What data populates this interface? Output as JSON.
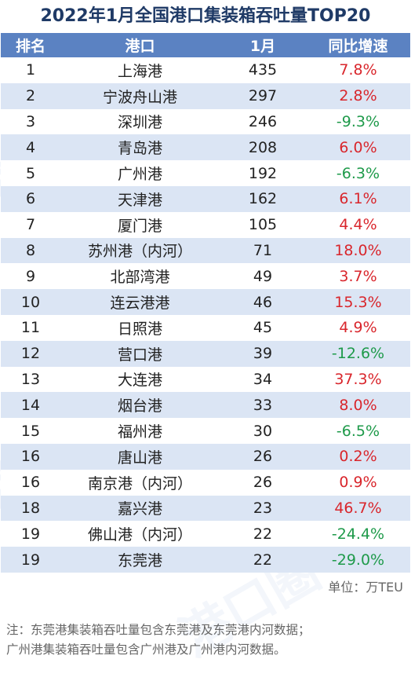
{
  "title": "2022年1月全国港口集装箱吞吐量TOP20",
  "headers": {
    "rank": "排名",
    "port": "港口",
    "jan": "1月",
    "growth": "同比增速"
  },
  "rows": [
    {
      "rank": "1",
      "port": "上海港",
      "jan": "435",
      "growth": "7.8%",
      "trend": "pos"
    },
    {
      "rank": "2",
      "port": "宁波舟山港",
      "jan": "297",
      "growth": "2.8%",
      "trend": "pos"
    },
    {
      "rank": "3",
      "port": "深圳港",
      "jan": "246",
      "growth": "-9.3%",
      "trend": "neg"
    },
    {
      "rank": "4",
      "port": "青岛港",
      "jan": "208",
      "growth": "6.0%",
      "trend": "pos"
    },
    {
      "rank": "5",
      "port": "广州港",
      "jan": "192",
      "growth": "-6.3%",
      "trend": "neg"
    },
    {
      "rank": "6",
      "port": "天津港",
      "jan": "162",
      "growth": "6.1%",
      "trend": "pos"
    },
    {
      "rank": "7",
      "port": "厦门港",
      "jan": "105",
      "growth": "4.4%",
      "trend": "pos"
    },
    {
      "rank": "8",
      "port": "苏州港（内河）",
      "jan": "71",
      "growth": "18.0%",
      "trend": "pos"
    },
    {
      "rank": "9",
      "port": "北部湾港",
      "jan": "49",
      "growth": "3.7%",
      "trend": "pos"
    },
    {
      "rank": "10",
      "port": "连云港港",
      "jan": "46",
      "growth": "15.3%",
      "trend": "pos"
    },
    {
      "rank": "11",
      "port": "日照港",
      "jan": "45",
      "growth": "4.9%",
      "trend": "pos"
    },
    {
      "rank": "12",
      "port": "营口港",
      "jan": "39",
      "growth": "-12.6%",
      "trend": "neg"
    },
    {
      "rank": "13",
      "port": "大连港",
      "jan": "34",
      "growth": "37.3%",
      "trend": "pos"
    },
    {
      "rank": "14",
      "port": "烟台港",
      "jan": "33",
      "growth": "8.0%",
      "trend": "pos"
    },
    {
      "rank": "15",
      "port": "福州港",
      "jan": "30",
      "growth": "-6.5%",
      "trend": "neg"
    },
    {
      "rank": "16",
      "port": "唐山港",
      "jan": "26",
      "growth": "0.2%",
      "trend": "pos"
    },
    {
      "rank": "16",
      "port": "南京港（内河）",
      "jan": "26",
      "growth": "0.9%",
      "trend": "pos"
    },
    {
      "rank": "18",
      "port": "嘉兴港",
      "jan": "23",
      "growth": "46.7%",
      "trend": "pos"
    },
    {
      "rank": "19",
      "port": "佛山港（内河）",
      "jan": "22",
      "growth": "-24.4%",
      "trend": "neg"
    },
    {
      "rank": "19",
      "port": "东莞港",
      "jan": "22",
      "growth": "-29.0%",
      "trend": "neg"
    }
  ],
  "unit": "单位：万TEU",
  "notes": [
    "注：东莞港集装箱吞吐量包含东莞港及东莞港内河数据；",
    "广州港集装箱吞吐量包含广州港及广州港内河数据。"
  ],
  "watermark": "港口圈",
  "colors": {
    "header_bg": "#5b82c2",
    "stripe": "#dbe5f4",
    "positive": "#d9262c",
    "negative": "#1e9a4a",
    "title": "#1f3a66"
  }
}
